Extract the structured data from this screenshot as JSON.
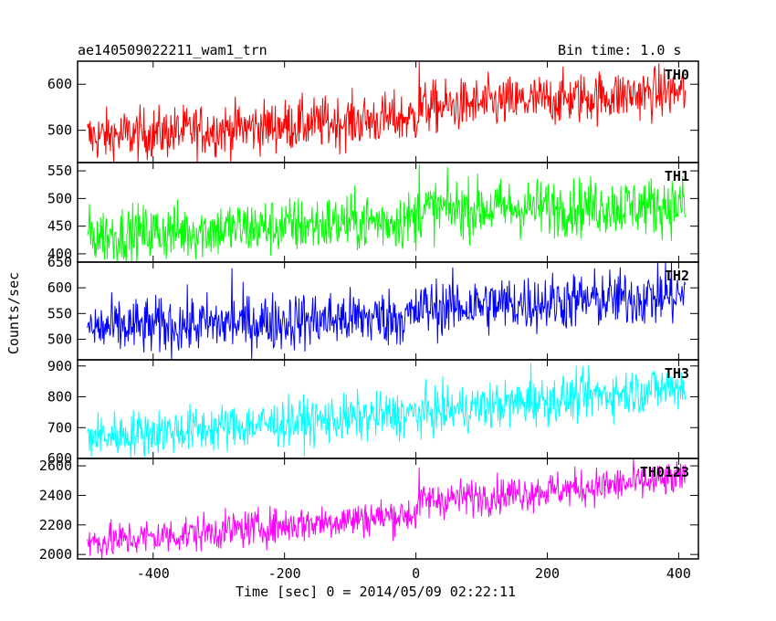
{
  "chart_data": {
    "type": "line",
    "title_left": "ae140509022211_wam1_trn",
    "title_right": "Bin time: 1.0 s",
    "xlabel": "Time [sec] 0 = 2014/05/09 02:22:11",
    "ylabel": "Counts/sec",
    "xlim": [
      -515,
      430
    ],
    "x_ticks": [
      -400,
      -200,
      0,
      200,
      400
    ],
    "x_range": [
      -500,
      410
    ],
    "bin_time_s": 1.0,
    "grid": false,
    "panels": [
      {
        "name": "TH0",
        "color": "#ff0000",
        "ylim": [
          430,
          650
        ],
        "y_ticks": [
          500,
          600
        ],
        "trend": [
          {
            "x": -500,
            "y": 485
          },
          {
            "x": 0,
            "y": 528
          },
          {
            "x": 5,
            "y": 548
          },
          {
            "x": 410,
            "y": 585
          }
        ],
        "noise": 28,
        "spikes": [
          {
            "x": 5,
            "y": 650
          }
        ]
      },
      {
        "name": "TH1",
        "color": "#00ff00",
        "ylim": [
          385,
          565
        ],
        "y_ticks": [
          400,
          450,
          500,
          550
        ],
        "trend": [
          {
            "x": -500,
            "y": 432
          },
          {
            "x": 0,
            "y": 462
          },
          {
            "x": 5,
            "y": 480
          },
          {
            "x": 410,
            "y": 488
          }
        ],
        "noise": 26,
        "spikes": [
          {
            "x": 5,
            "y": 562
          }
        ]
      },
      {
        "name": "TH2",
        "color": "#0000ff",
        "ylim": [
          460,
          650
        ],
        "y_ticks": [
          500,
          550,
          600,
          650
        ],
        "trend": [
          {
            "x": -500,
            "y": 520
          },
          {
            "x": 0,
            "y": 545
          },
          {
            "x": 5,
            "y": 560
          },
          {
            "x": 410,
            "y": 585
          }
        ],
        "noise": 28,
        "spikes": [
          {
            "x": -280,
            "y": 638
          },
          {
            "x": 380,
            "y": 650
          }
        ]
      },
      {
        "name": "TH3",
        "color": "#00ffff",
        "ylim": [
          600,
          920
        ],
        "y_ticks": [
          600,
          700,
          800,
          900
        ],
        "trend": [
          {
            "x": -500,
            "y": 670
          },
          {
            "x": 0,
            "y": 745
          },
          {
            "x": 410,
            "y": 835
          }
        ],
        "noise": 38,
        "spikes": [
          {
            "x": 175,
            "y": 910
          }
        ]
      },
      {
        "name": "TH0123",
        "color": "#ff00ff",
        "ylim": [
          1970,
          2650
        ],
        "y_ticks": [
          2000,
          2200,
          2400,
          2600
        ],
        "trend": [
          {
            "x": -500,
            "y": 2080
          },
          {
            "x": 0,
            "y": 2275
          },
          {
            "x": 5,
            "y": 2360
          },
          {
            "x": 410,
            "y": 2510
          }
        ],
        "noise": 62,
        "spikes": [
          {
            "x": 5,
            "y": 2590
          }
        ]
      }
    ]
  }
}
